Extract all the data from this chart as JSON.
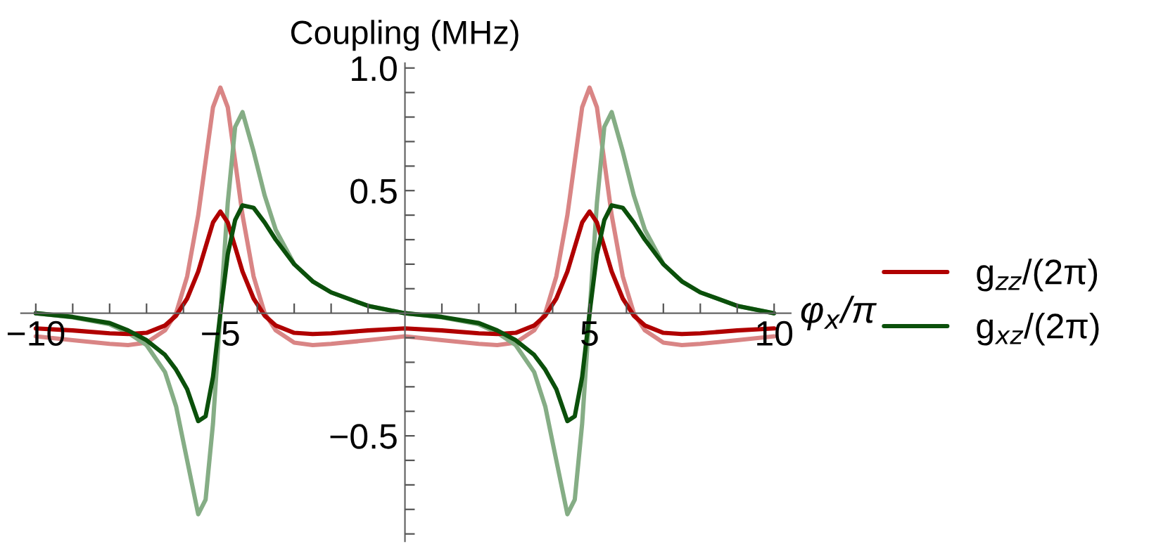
{
  "chart_data": {
    "type": "line",
    "xlabel": "φ$_{x}$/π",
    "ylabel": "Coupling (MHz)",
    "x": [
      -10,
      -9,
      -8,
      -7.5,
      -7,
      -6.5,
      -6.2,
      -5.9,
      -5.6,
      -5.4,
      -5.2,
      -5,
      -4.8,
      -4.6,
      -4.4,
      -4.1,
      -3.8,
      -3.5,
      -3,
      -2.5,
      -2,
      -1,
      0,
      1,
      2,
      2.5,
      3,
      3.5,
      3.8,
      4.1,
      4.4,
      4.6,
      4.8,
      5,
      5.2,
      5.4,
      5.6,
      5.9,
      6.2,
      6.5,
      7,
      7.5,
      8,
      9,
      10
    ],
    "series": [
      {
        "color": "#d98585",
        "values": [
          -0.094,
          -0.11,
          -0.125,
          -0.13,
          -0.12,
          -0.07,
          0.0,
          0.15,
          0.4,
          0.62,
          0.84,
          0.92,
          0.84,
          0.62,
          0.4,
          0.15,
          0.0,
          -0.07,
          -0.12,
          -0.13,
          -0.125,
          -0.11,
          -0.094,
          -0.11,
          -0.125,
          -0.13,
          -0.12,
          -0.07,
          0.0,
          0.15,
          0.4,
          0.62,
          0.84,
          0.92,
          0.84,
          0.62,
          0.4,
          0.15,
          0.0,
          -0.07,
          -0.12,
          -0.13,
          -0.125,
          -0.11,
          -0.094
        ]
      },
      {
        "color": "#85ad85",
        "values": [
          0,
          -0.017,
          -0.045,
          -0.08,
          -0.13,
          -0.24,
          -0.38,
          -0.6,
          -0.82,
          -0.76,
          -0.45,
          0,
          0.45,
          0.76,
          0.82,
          0.66,
          0.48,
          0.34,
          0.2,
          0.13,
          0.085,
          0.03,
          0,
          -0.017,
          -0.045,
          -0.08,
          -0.13,
          -0.24,
          -0.38,
          -0.6,
          -0.82,
          -0.76,
          -0.45,
          0,
          0.45,
          0.76,
          0.82,
          0.66,
          0.48,
          0.34,
          0.2,
          0.13,
          0.085,
          0.03,
          0
        ]
      },
      {
        "name": "g$_{zz}$/(2π)",
        "color": "#b00000",
        "values": [
          -0.062,
          -0.07,
          -0.082,
          -0.085,
          -0.08,
          -0.05,
          -0.01,
          0.06,
          0.17,
          0.27,
          0.37,
          0.415,
          0.37,
          0.27,
          0.17,
          0.06,
          -0.01,
          -0.05,
          -0.08,
          -0.085,
          -0.082,
          -0.07,
          -0.062,
          -0.07,
          -0.082,
          -0.085,
          -0.08,
          -0.05,
          -0.01,
          0.06,
          0.17,
          0.27,
          0.37,
          0.415,
          0.37,
          0.27,
          0.17,
          0.06,
          -0.01,
          -0.05,
          -0.08,
          -0.085,
          -0.082,
          -0.07,
          -0.062
        ]
      },
      {
        "name": "g$_{xz}$/(2π)",
        "color": "#0b500b",
        "values": [
          0,
          -0.015,
          -0.04,
          -0.07,
          -0.11,
          -0.17,
          -0.23,
          -0.31,
          -0.44,
          -0.42,
          -0.26,
          0,
          0.24,
          0.38,
          0.44,
          0.43,
          0.37,
          0.3,
          0.2,
          0.13,
          0.085,
          0.03,
          0,
          -0.015,
          -0.04,
          -0.07,
          -0.11,
          -0.17,
          -0.23,
          -0.31,
          -0.44,
          -0.42,
          -0.26,
          0,
          0.24,
          0.38,
          0.44,
          0.43,
          0.37,
          0.3,
          0.2,
          0.13,
          0.085,
          0.03,
          0
        ]
      }
    ],
    "xlim": [
      -10.4,
      10.45
    ],
    "ylim": [
      -0.93,
      1.02
    ],
    "xticks": [
      {
        "value": -10,
        "label": "−10"
      },
      {
        "value": -9,
        "label": null
      },
      {
        "value": -8,
        "label": null
      },
      {
        "value": -7,
        "label": null
      },
      {
        "value": -6,
        "label": null
      },
      {
        "value": -5,
        "label": "−5"
      },
      {
        "value": -4,
        "label": null
      },
      {
        "value": -3,
        "label": null
      },
      {
        "value": -2,
        "label": null
      },
      {
        "value": -1,
        "label": null
      },
      {
        "value": 1,
        "label": null
      },
      {
        "value": 2,
        "label": null
      },
      {
        "value": 3,
        "label": null
      },
      {
        "value": 4,
        "label": null
      },
      5,
      {
        "value": 6,
        "label": null
      },
      {
        "value": 7,
        "label": null
      },
      {
        "value": 8,
        "label": null
      },
      {
        "value": 9,
        "label": null
      },
      10
    ],
    "yticks": [
      {
        "value": -0.9,
        "label": null
      },
      {
        "value": -0.8,
        "label": null
      },
      {
        "value": -0.7,
        "label": null
      },
      {
        "value": -0.6,
        "label": null
      },
      {
        "value": -0.5,
        "label": "−0.5"
      },
      {
        "value": -0.4,
        "label": null
      },
      {
        "value": -0.3,
        "label": null
      },
      {
        "value": -0.2,
        "label": null
      },
      {
        "value": -0.1,
        "label": null
      },
      {
        "value": 0.1,
        "label": null
      },
      {
        "value": 0.2,
        "label": null
      },
      {
        "value": 0.3,
        "label": null
      },
      {
        "value": 0.4,
        "label": null
      },
      0.5,
      {
        "value": 0.6,
        "label": null
      },
      {
        "value": 0.7,
        "label": null
      },
      {
        "value": 0.8,
        "label": null
      },
      {
        "value": 0.9,
        "label": null
      },
      {
        "value": 1.0,
        "label": "1.0"
      }
    ],
    "legend": "right",
    "grid": false,
    "marker": "none",
    "line_style": "solid"
  }
}
